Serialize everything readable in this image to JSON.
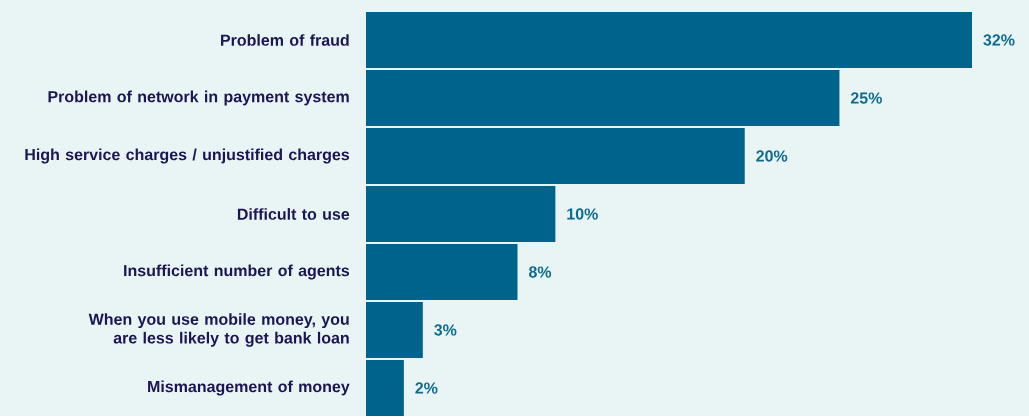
{
  "chart_data": {
    "type": "bar",
    "orientation": "horizontal",
    "categories": [
      "Problem of fraud",
      "Problem of network in payment system",
      "High service charges / unjustified charges",
      "Difficult to use",
      "Insufficient number of agents",
      "When you use mobile money, you are less likely to get bank loan",
      "Mismanagement of money"
    ],
    "values": [
      32,
      25,
      20,
      10,
      8,
      3,
      2
    ],
    "value_labels": [
      "32%",
      "25%",
      "20%",
      "10%",
      "8%",
      "3%",
      "2%"
    ],
    "color": "#00638c"
  }
}
